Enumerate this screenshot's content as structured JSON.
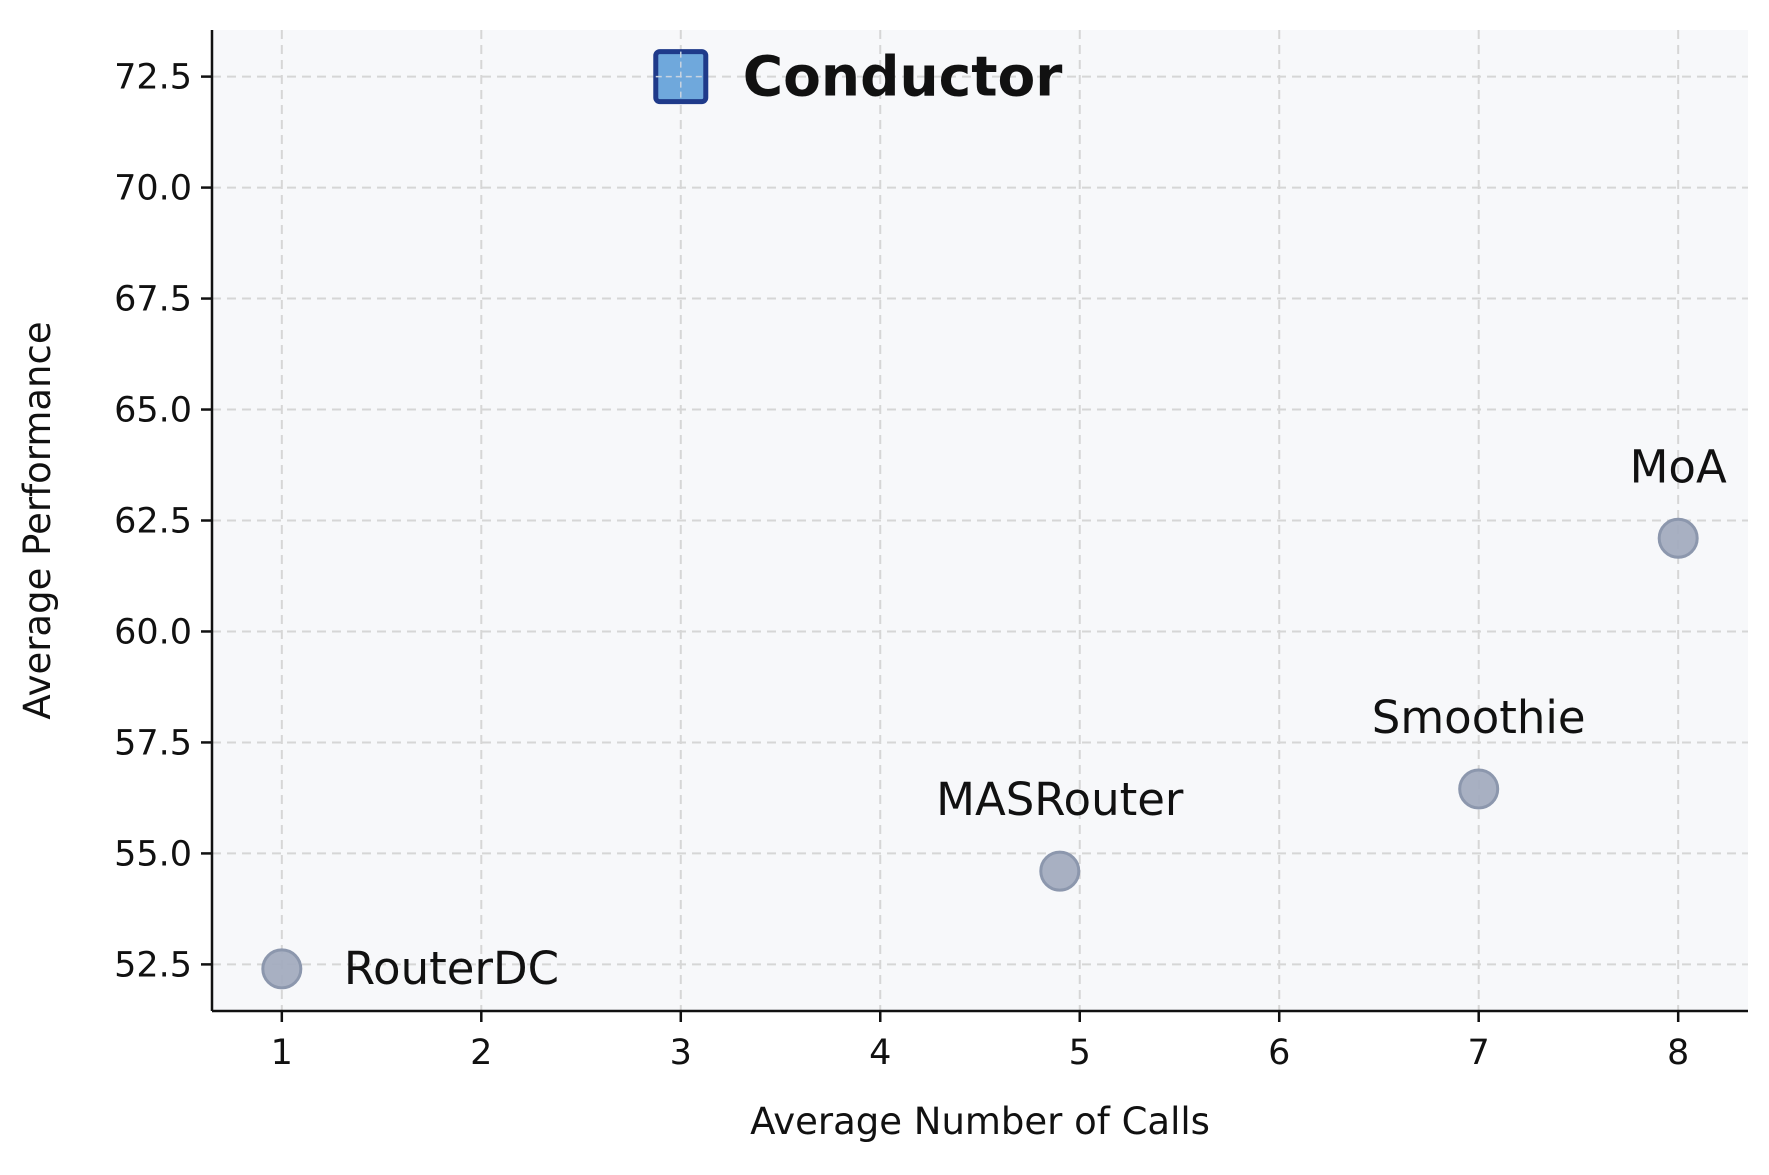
{
  "chart_data": {
    "type": "scatter",
    "title": "",
    "xlabel": "Average Number of Calls",
    "ylabel": "Average Performance",
    "xlim": [
      0.65,
      8.35
    ],
    "ylim": [
      51.45,
      73.55
    ],
    "xticks": [
      1,
      2,
      3,
      4,
      5,
      6,
      7,
      8
    ],
    "xtick_labels": [
      "1",
      "2",
      "3",
      "4",
      "5",
      "6",
      "7",
      "8"
    ],
    "yticks": [
      52.5,
      55.0,
      57.5,
      60.0,
      62.5,
      65.0,
      67.5,
      70.0,
      72.5
    ],
    "ytick_labels": [
      "52.5",
      "55.0",
      "57.5",
      "60.0",
      "62.5",
      "65.0",
      "67.5",
      "70.0",
      "72.5"
    ],
    "grid": true,
    "points": [
      {
        "label": "Conductor",
        "x": 3.0,
        "y": 72.5,
        "marker": "square",
        "label_position": "right",
        "bold": true,
        "color": "#6fa8dc",
        "edge_color": "#1f3a8a"
      },
      {
        "label": "MoA",
        "x": 8.0,
        "y": 62.1,
        "marker": "circle",
        "label_position": "above",
        "bold": false,
        "color": "#a3acbf",
        "edge_color": "#8c97ad"
      },
      {
        "label": "Smoothie",
        "x": 7.0,
        "y": 56.45,
        "marker": "circle",
        "label_position": "above",
        "bold": false,
        "color": "#a3acbf",
        "edge_color": "#8c97ad"
      },
      {
        "label": "MASRouter",
        "x": 4.9,
        "y": 54.6,
        "marker": "circle",
        "label_position": "above",
        "bold": false,
        "color": "#a3acbf",
        "edge_color": "#8c97ad"
      },
      {
        "label": "RouterDC",
        "x": 1.0,
        "y": 52.4,
        "marker": "circle",
        "label_position": "right",
        "bold": false,
        "color": "#a3acbf",
        "edge_color": "#8c97ad"
      }
    ],
    "colors": {
      "plot_background": "#f7f8fa",
      "grid": "#d6d6d6"
    }
  }
}
